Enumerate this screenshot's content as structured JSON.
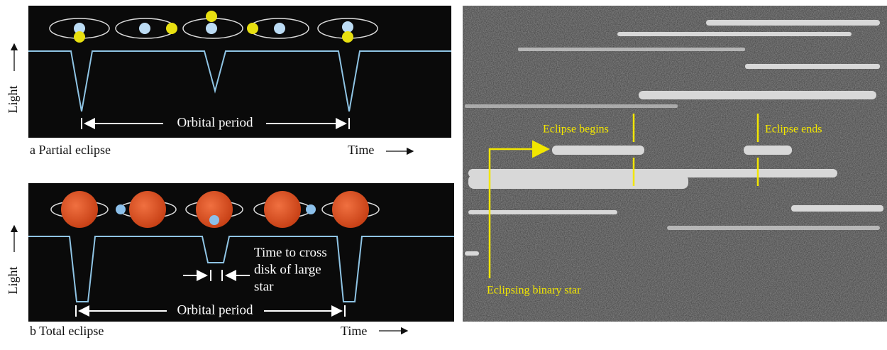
{
  "panel_a": {
    "y_label": "Light",
    "period_label": "Orbital period",
    "caption": "a  Partial eclipse",
    "x_label": "Time"
  },
  "panel_b": {
    "y_label": "Light",
    "period_label": "Orbital period",
    "crossing_label": [
      "Time to cross",
      "disk of large",
      "star"
    ],
    "caption": "b  Total eclipse",
    "x_label": "Time"
  },
  "photo": {
    "begin_label": "Eclipse begins",
    "end_label": "Eclipse ends",
    "target_label": "Eclipsing binary star"
  }
}
